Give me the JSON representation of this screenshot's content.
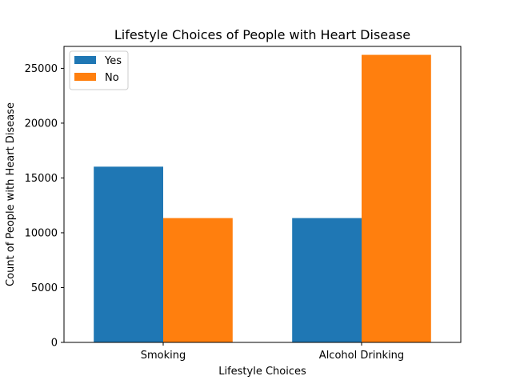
{
  "chart_data": {
    "type": "bar",
    "title": "Lifestyle Choices of People with Heart Disease",
    "xlabel": "Lifestyle Choices",
    "ylabel": "Count of People with Heart Disease",
    "categories": [
      "Smoking",
      "Alcohol Drinking"
    ],
    "series": [
      {
        "name": "Yes",
        "color": "#1f77b4",
        "values": [
          16030,
          11340
        ]
      },
      {
        "name": "No",
        "color": "#ff7f0e",
        "values": [
          11340,
          26230
        ]
      }
    ],
    "ylim": [
      0,
      27000
    ],
    "yticks": [
      0,
      5000,
      10000,
      15000,
      20000,
      25000
    ],
    "ytick_labels": [
      "0",
      "5000",
      "10000",
      "15000",
      "20000",
      "25000"
    ],
    "grid": false,
    "legend_position": "top-left"
  }
}
